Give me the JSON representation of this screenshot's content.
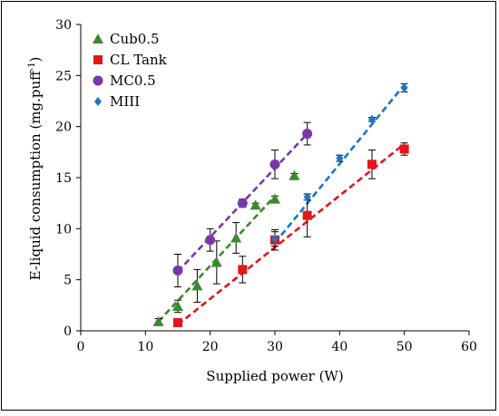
{
  "chart_data": {
    "type": "scatter",
    "title": "",
    "xlabel": "Supplied power (W)",
    "ylabel_main": "E-liquid consumption (mg.puff",
    "ylabel_sup": "-1",
    "ylabel_close": ")",
    "xlim": [
      0,
      60
    ],
    "ylim": [
      0,
      30
    ],
    "xticks": [
      0,
      10,
      20,
      30,
      40,
      50,
      60
    ],
    "yticks": [
      0,
      5,
      10,
      15,
      20,
      25,
      30
    ],
    "x_tick_labels": [
      "0",
      "10",
      "20",
      "30",
      "40",
      "50",
      "60"
    ],
    "y_tick_labels": [
      "0",
      "5",
      "10",
      "15",
      "20",
      "25",
      "30"
    ],
    "grid": false,
    "legend_position": "top-left",
    "series": [
      {
        "name": "Cub0.5",
        "color": "#3a8a2e",
        "marker": "triangle",
        "points": [
          {
            "x": 12,
            "y": 0.9,
            "err": 0.3
          },
          {
            "x": 15,
            "y": 2.4,
            "err": 0.6
          },
          {
            "x": 18,
            "y": 4.4,
            "err": 1.6
          },
          {
            "x": 21,
            "y": 6.7,
            "err": 2.1
          },
          {
            "x": 24,
            "y": 9.1,
            "err": 1.5
          },
          {
            "x": 27,
            "y": 12.3,
            "err": 0.2
          },
          {
            "x": 30,
            "y": 12.9,
            "err": 0.3
          },
          {
            "x": 33,
            "y": 15.2,
            "err": 0.2
          }
        ],
        "fit": {
          "x": [
            12,
            30
          ],
          "y": [
            0.9,
            13.2
          ]
        }
      },
      {
        "name": "CL Tank",
        "color": "#e3161b",
        "marker": "square",
        "points": [
          {
            "x": 15,
            "y": 0.8,
            "err": 0.2
          },
          {
            "x": 25,
            "y": 6.0,
            "err": 1.3
          },
          {
            "x": 30,
            "y": 8.9,
            "err": 1.0
          },
          {
            "x": 35,
            "y": 11.3,
            "err": 2.1
          },
          {
            "x": 45,
            "y": 16.3,
            "err": 1.4
          },
          {
            "x": 50,
            "y": 17.8,
            "err": 0.6
          }
        ],
        "fit": {
          "x": [
            15,
            50
          ],
          "y": [
            0.6,
            18.3
          ]
        }
      },
      {
        "name": "MC0.5",
        "color": "#7a36a8",
        "marker": "circle",
        "points": [
          {
            "x": 15,
            "y": 5.9,
            "err": 1.6
          },
          {
            "x": 20,
            "y": 8.9,
            "err": 1.1
          },
          {
            "x": 25,
            "y": 12.5,
            "err": 0.4
          },
          {
            "x": 30,
            "y": 16.3,
            "err": 1.4
          },
          {
            "x": 35,
            "y": 19.3,
            "err": 1.1
          }
        ],
        "fit": {
          "x": [
            15,
            35
          ],
          "y": [
            5.8,
            19.3
          ]
        }
      },
      {
        "name": "MIII",
        "color": "#1a75c7",
        "marker": "diamond",
        "points": [
          {
            "x": 30,
            "y": 9.0,
            "err": 0.7
          },
          {
            "x": 35,
            "y": 13.1,
            "err": 0.3
          },
          {
            "x": 40,
            "y": 16.9,
            "err": 0.3
          },
          {
            "x": 45,
            "y": 20.7,
            "err": 0.2
          },
          {
            "x": 50,
            "y": 23.8,
            "err": 0.4
          }
        ],
        "fit": {
          "x": [
            30,
            50
          ],
          "y": [
            8.6,
            24.1
          ]
        }
      }
    ]
  }
}
